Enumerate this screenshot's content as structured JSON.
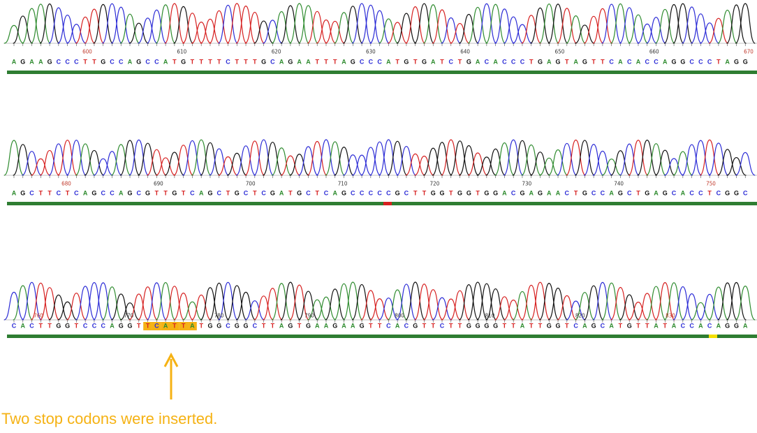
{
  "rows": [
    {
      "positions": [
        600,
        610,
        620,
        630,
        640,
        650,
        660,
        670
      ],
      "sequence": "AGAAGCCCTTGCCAGCCATGTTTTCTTTGCAGAATTTAGCCCATGTGATCTGACACCCTGAGTAGTTCACACCAGGCCCTAGG"
    },
    {
      "positions": [
        680,
        690,
        700,
        710,
        720,
        730,
        740,
        750
      ],
      "sequence": "AGCTTCTCAGCCAGCGTTGTCAGCTGCTCGATGCTCAGCCCCCGCTTGGTGGTGGACGAGAACTGCCAGCTGAGCACCTCGGC"
    },
    {
      "positions": [
        760,
        770,
        780,
        790,
        800,
        810,
        820,
        830
      ],
      "sequence": "CACTTGGTCCCAGGTTCATTATGGCGGCTTAGTGAAGAAGTTCACGTTCTTGGGGTTATTGGTCAGCATGTTATACCACAGGA"
    }
  ],
  "annotation": "Two stop codons were inserted."
}
